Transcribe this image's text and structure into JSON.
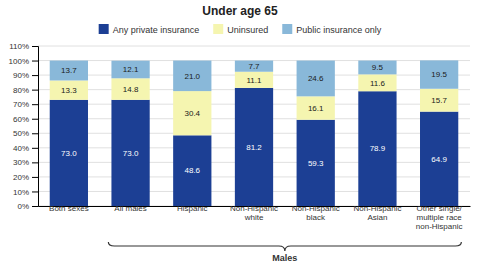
{
  "chart_data": {
    "type": "bar",
    "title": "Under age 65",
    "stacked": true,
    "data_labels": true,
    "grid": true,
    "legend": "top",
    "categories": [
      "Both sexes",
      "All males",
      "Hispanic",
      "Non-Hispanic\nwhite",
      "Non-Hispanic\nblack",
      "Non-Hispanic\nAsian",
      "Other single/\nmultiple race\nnon-Hispanic"
    ],
    "series": [
      {
        "name": "Any private insurance",
        "color": "#1c3f94",
        "values": [
          73.0,
          73.0,
          48.6,
          81.2,
          59.3,
          78.9,
          64.9
        ],
        "value_labels": [
          "73.0",
          "73.0",
          "48.6",
          "81.2",
          "59.3",
          "78.9",
          "64.9"
        ]
      },
      {
        "name": "Uninsured",
        "color": "#f5f5b0",
        "values": [
          13.3,
          14.8,
          30.4,
          11.1,
          16.1,
          11.6,
          15.7
        ],
        "value_labels": [
          "13.3",
          "14.8",
          "30.4",
          "11.1",
          "16.1",
          "11.6",
          "15.7"
        ]
      },
      {
        "name": "Public insurance only",
        "color": "#89b8d9",
        "values": [
          13.7,
          12.1,
          21.0,
          7.7,
          24.6,
          9.5,
          19.5
        ],
        "value_labels": [
          "13.7",
          "12.1",
          "21.0",
          "7.7",
          "24.6",
          "9.5",
          "19.5"
        ]
      }
    ],
    "ylim": [
      0,
      110
    ],
    "yticks": [
      {
        "value": 0,
        "label": "0%"
      },
      {
        "value": 10,
        "label": "10%"
      },
      {
        "value": 20,
        "label": "20%"
      },
      {
        "value": 30,
        "label": "30%"
      },
      {
        "value": 40,
        "label": "40%"
      },
      {
        "value": 50,
        "label": "50%"
      },
      {
        "value": 60,
        "label": "60%"
      },
      {
        "value": 70,
        "label": "70%"
      },
      {
        "value": 80,
        "label": "80%"
      },
      {
        "value": 90,
        "label": "90%"
      },
      {
        "value": 100,
        "label": "100%"
      },
      {
        "value": 110,
        "label": "110%"
      }
    ],
    "annotations": [
      {
        "text": "Males",
        "from": "All males",
        "to": "Other single/\nmultiple race\nnon-Hispanic"
      }
    ]
  }
}
